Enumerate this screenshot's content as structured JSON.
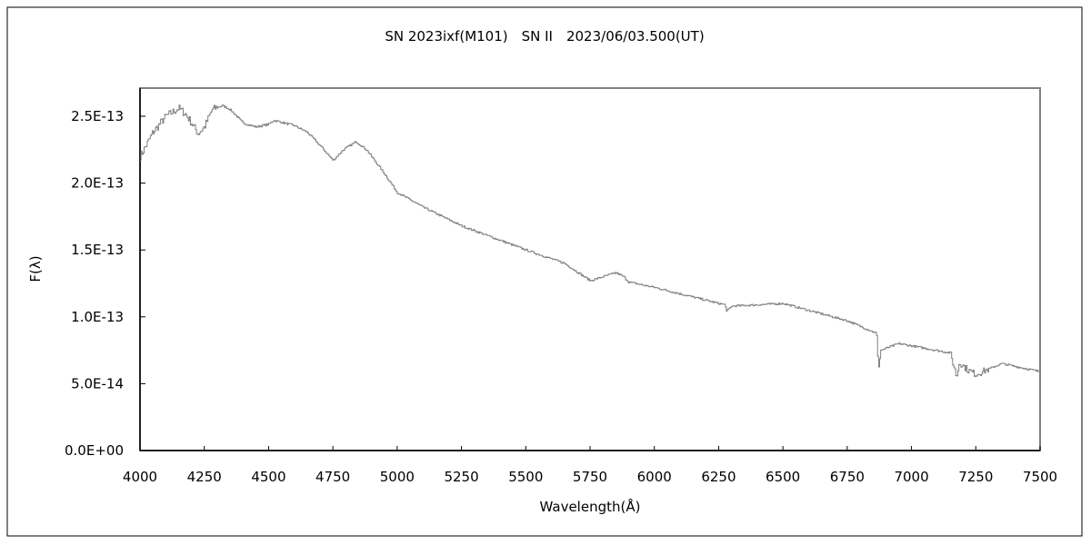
{
  "chart_data": {
    "type": "line",
    "title": "SN 2023ixf(M101)　SN II　2023/06/03.500(UT)",
    "xlabel": "Wavelength(Å)",
    "ylabel": "F(λ)",
    "xlim": [
      4000,
      7500
    ],
    "ylim": [
      0,
      2.5e-13
    ],
    "xticks": [
      4000,
      4250,
      4500,
      4750,
      5000,
      5250,
      5500,
      5750,
      6000,
      6250,
      6500,
      6750,
      7000,
      7250,
      7500
    ],
    "xtick_labels": [
      "4000",
      "4250",
      "4500",
      "4750",
      "5000",
      "5250",
      "5500",
      "5750",
      "6000",
      "6250",
      "6500",
      "6750",
      "7000",
      "7250",
      "7500"
    ],
    "yticks": [
      0,
      5e-14,
      1e-13,
      1.5e-13,
      2e-13,
      2.5e-13
    ],
    "ytick_labels": [
      "0.0E+00",
      "5.0E-14",
      "1.0E-13",
      "1.5E-13",
      "2.0E-13",
      "2.5E-13"
    ],
    "grid": false,
    "series": [
      {
        "name": "spectrum",
        "color": "#808080",
        "x": [
          4000,
          4020,
          4050,
          4100,
          4150,
          4175,
          4200,
          4225,
          4250,
          4280,
          4320,
          4350,
          4400,
          4450,
          4500,
          4520,
          4600,
          4650,
          4700,
          4750,
          4790,
          4840,
          4880,
          4950,
          5000,
          5100,
          5250,
          5500,
          5650,
          5750,
          5850,
          5880,
          5900,
          6000,
          6250,
          6275,
          6280,
          6300,
          6500,
          6750,
          6860,
          6865,
          6870,
          6880,
          6950,
          7150,
          7175,
          7185,
          7220,
          7250,
          7350,
          7500
        ],
        "y": [
          2.2e-13,
          2.27e-13,
          2.38e-13,
          2.5e-13,
          2.56e-13,
          2.52e-13,
          2.45e-13,
          2.37e-13,
          2.42e-13,
          2.55e-13,
          2.58e-13,
          2.55e-13,
          2.45e-13,
          2.42e-13,
          2.44e-13,
          2.47e-13,
          2.43e-13,
          2.38e-13,
          2.28e-13,
          2.17e-13,
          2.25e-13,
          2.31e-13,
          2.25e-13,
          2.07e-13,
          1.93e-13,
          1.82e-13,
          1.68e-13,
          1.5e-13,
          1.4e-13,
          1.27e-13,
          1.33e-13,
          1.3e-13,
          1.26e-13,
          1.22e-13,
          1.1e-13,
          1.09e-13,
          1.04e-13,
          1.08e-13,
          1.1e-13,
          9.7e-14,
          8.8e-14,
          8.5e-14,
          6e-14,
          7.5e-14,
          8e-14,
          7.3e-14,
          5.5e-14,
          6.6e-14,
          6e-14,
          5.7e-14,
          6.5e-14,
          5.9e-14
        ]
      }
    ]
  }
}
